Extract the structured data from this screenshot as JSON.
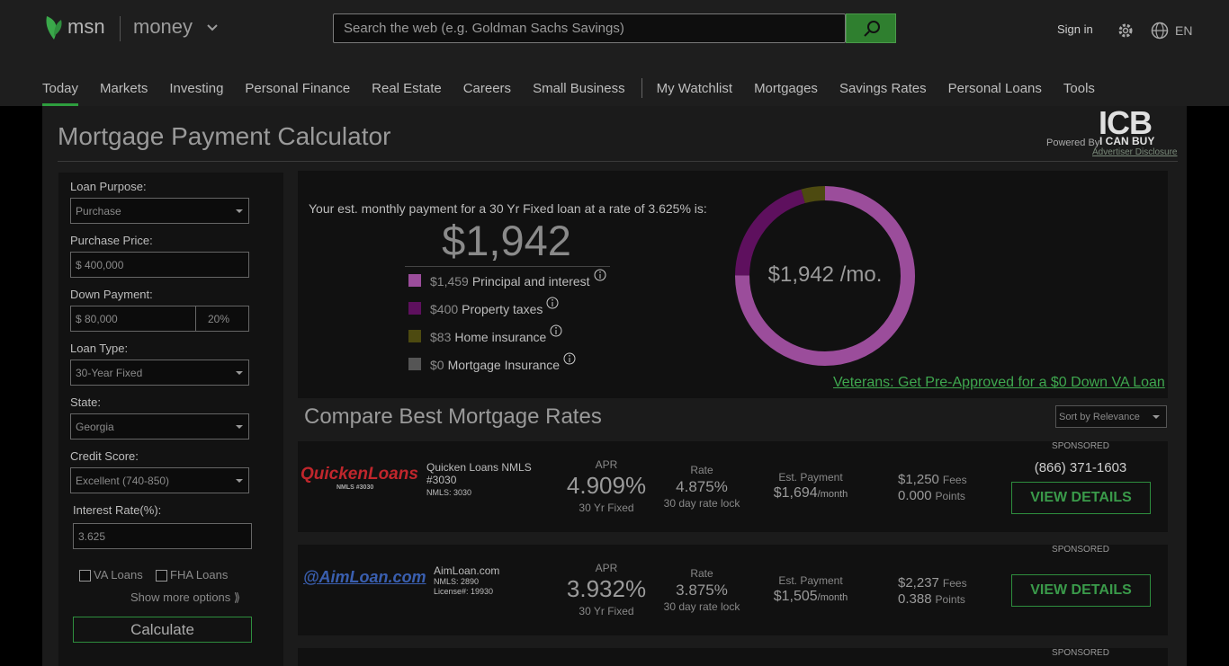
{
  "header": {
    "brand": "msn",
    "section": "money",
    "search_placeholder": "Search the web (e.g. Goldman Sachs Savings)",
    "sign_in": "Sign in",
    "language": "EN"
  },
  "nav": {
    "primary": [
      "Today",
      "Markets",
      "Investing",
      "Personal Finance",
      "Real Estate",
      "Careers",
      "Small Business"
    ],
    "secondary": [
      "My Watchlist",
      "Mortgages",
      "Savings Rates",
      "Personal Loans",
      "Tools"
    ]
  },
  "page": {
    "title": "Mortgage Payment Calculator",
    "powered_by": "Powered By",
    "logo": "ICB",
    "logo_sub": "I CAN BUY",
    "disclosure": "Advertiser Disclosure"
  },
  "form": {
    "fields": [
      {
        "label": "Loan Purpose:",
        "value": "Purchase"
      },
      {
        "label": "Purchase Price:",
        "value": "$ 400,000"
      },
      {
        "label": "Down Payment:",
        "value": "$ 80,000",
        "percent": "20%"
      },
      {
        "label": "Loan Type:",
        "value": "30-Year Fixed"
      },
      {
        "label": "State:",
        "value": "Georgia"
      },
      {
        "label": "Credit Score:",
        "value": "Excellent (740-850)"
      },
      {
        "label": "Interest Rate(%):",
        "value": "3.625"
      }
    ],
    "checkboxes": [
      "VA Loans",
      "FHA Loans"
    ],
    "more_options": "Show more options ⟫",
    "submit": "Calculate"
  },
  "summary": {
    "intro": "Your est. monthly payment for a 30 Yr Fixed loan at a rate of 3.625% is:",
    "total": "$1,942",
    "center_label": "$1,942 /mo.",
    "breakdown": [
      {
        "value": 1459,
        "value_label": "$1,459",
        "name": "Principal and interest",
        "color": "#9b4d9b"
      },
      {
        "value": 400,
        "value_label": "$400",
        "name": "Property taxes",
        "color": "#5e105e"
      },
      {
        "value": 83,
        "value_label": "$83",
        "name": "Home insurance",
        "color": "#4d4a10"
      },
      {
        "value": 0,
        "value_label": "$0",
        "name": "Mortgage Insurance",
        "color": "#555555"
      }
    ],
    "va_link": "Veterans: Get Pre-Approved for a $0 Down VA Loan"
  },
  "compare": {
    "title": "Compare Best Mortgage Rates",
    "sort": "Sort by Relevance",
    "offers": [
      {
        "sponsored": "SPONSORED",
        "logo": "QuickenLoans",
        "logo_note": "NMLS #3030",
        "name": "Quicken Loans NMLS #3030",
        "licenses": [
          "NMLS: 3030"
        ],
        "apr_label": "APR",
        "apr": "4.909%",
        "term": "30 Yr Fixed",
        "rate_label": "Rate",
        "rate": "4.875%",
        "lock": "30 day rate lock",
        "payment_label": "Est. Payment",
        "payment": "$1,694",
        "payment_unit": "/month",
        "fees": "$1,250",
        "fees_label": "Fees",
        "points": "0.000",
        "points_label": "Points",
        "phone": "(866) 371-1603",
        "button": "VIEW DETAILS"
      },
      {
        "sponsored": "SPONSORED",
        "logo": "@AimLoan.com",
        "name": "AimLoan.com",
        "licenses": [
          "NMLS: 2890",
          "License#: 19930"
        ],
        "apr_label": "APR",
        "apr": "3.932%",
        "term": "30 Yr Fixed",
        "rate_label": "Rate",
        "rate": "3.875%",
        "lock": "30 day rate lock",
        "payment_label": "Est. Payment",
        "payment": "$1,505",
        "payment_unit": "/month",
        "fees": "$2,237",
        "fees_label": "Fees",
        "points": "0.388",
        "points_label": "Points",
        "button": "VIEW DETAILS"
      },
      {
        "sponsored": "SPONSORED"
      }
    ]
  }
}
